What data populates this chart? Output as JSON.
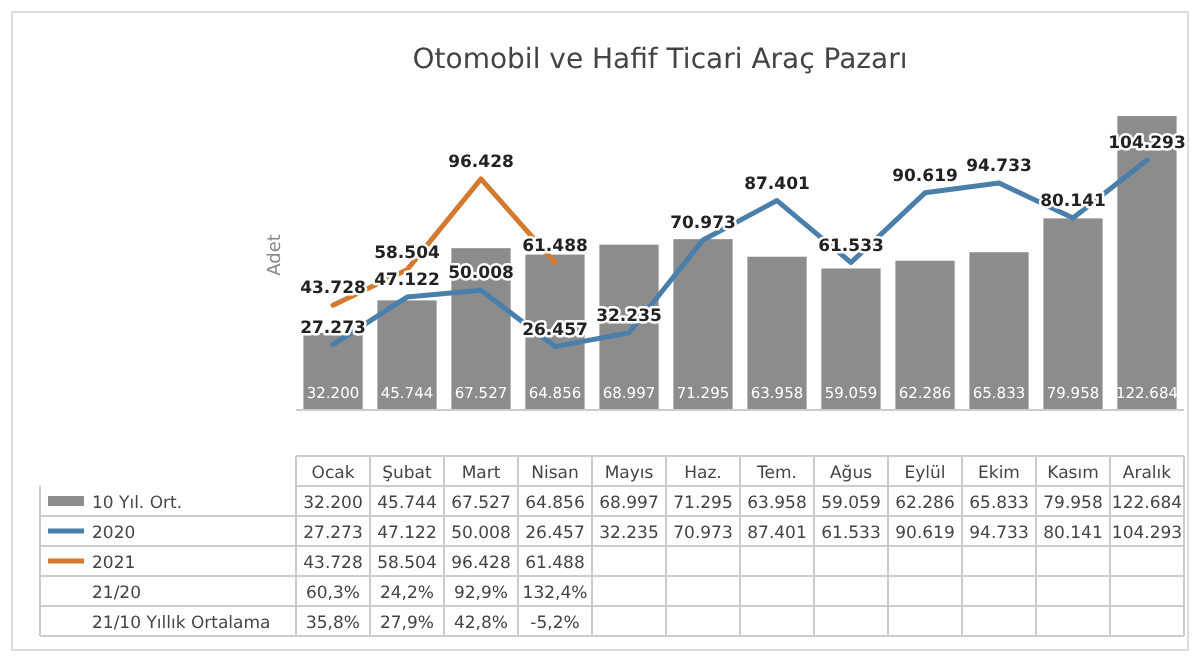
{
  "chart_data": {
    "type": "bar",
    "title": "Otomobil ve Hafif Ticari Araç Pazarı",
    "ylabel": "Adet",
    "categories": [
      "Ocak",
      "Şubat",
      "Mart",
      "Nisan",
      "Mayıs",
      "Haz.",
      "Tem.",
      "Ağus",
      "Eylül",
      "Ekim",
      "Kasım",
      "Aralık"
    ],
    "series": [
      {
        "name": "10 Yıl. Ort.",
        "color": "#8c8c8c",
        "values": [
          32200,
          45744,
          67527,
          64856,
          68997,
          71295,
          63958,
          59059,
          62286,
          65833,
          79958,
          122684
        ],
        "value_labels": [
          "32.200",
          "45.744",
          "67.527",
          "64.856",
          "68.997",
          "71.295",
          "63.958",
          "59.059",
          "62.286",
          "65.833",
          "79.958",
          "122.684"
        ]
      },
      {
        "name": "2020",
        "type": "line",
        "color": "#4a7eab",
        "values": [
          27273,
          47122,
          50008,
          26457,
          32235,
          70973,
          87401,
          61533,
          90619,
          94733,
          80141,
          104293
        ],
        "value_labels": [
          "27.273",
          "47.122",
          "50.008",
          "26.457",
          "32.235",
          "70.973",
          "87.401",
          "61.533",
          "90.619",
          "94.733",
          "80.141",
          "104.293"
        ]
      },
      {
        "name": "2021",
        "type": "line",
        "color": "#d47a30",
        "values": [
          43728,
          58504,
          96428,
          61488,
          null,
          null,
          null,
          null,
          null,
          null,
          null,
          null
        ],
        "value_labels": [
          "43.728",
          "58.504",
          "96.428",
          "61.488",
          null,
          null,
          null,
          null,
          null,
          null,
          null,
          null
        ]
      }
    ],
    "annotations": [
      "21/20",
      "60,3%",
      "24,2%",
      "92,9%",
      "132,4%",
      "21/10 Yıllık Ortalama",
      "35,8%",
      "27,9%",
      "42,8%",
      "-5,2%"
    ],
    "legend": "bottom",
    "marker": "none",
    "line_style": "solid"
  }
}
